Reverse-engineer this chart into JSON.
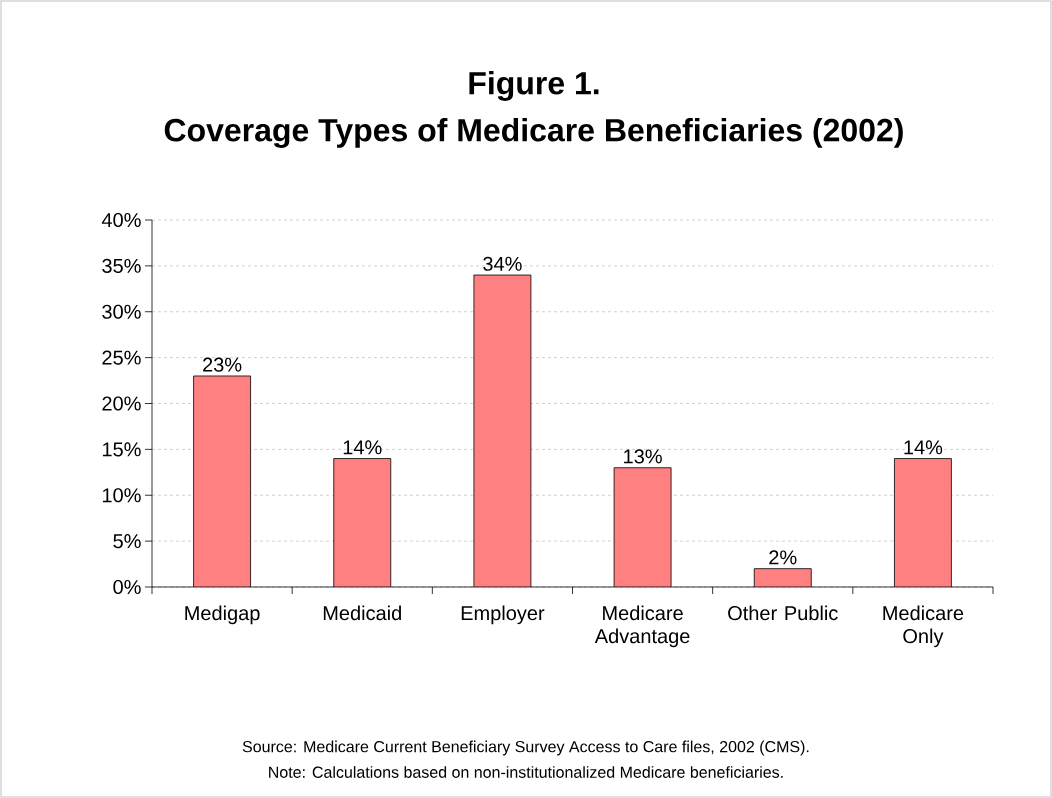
{
  "chart_data": {
    "type": "bar",
    "title": "Figure 1.",
    "subtitle": "Coverage Types of Medicare Beneficiaries (2002)",
    "categories": [
      "Medigap",
      "Medicaid",
      "Employer",
      "Medicare Advantage",
      "Other Public",
      "Medicare Only"
    ],
    "values": [
      23,
      14,
      34,
      13,
      2,
      14
    ],
    "value_labels": [
      "23%",
      "14%",
      "34%",
      "13%",
      "2%",
      "14%"
    ],
    "color": "#ff8080",
    "ylim": [
      0,
      40
    ],
    "yticks": [
      {
        "value": 0,
        "label": "0%"
      },
      {
        "value": 5,
        "label": "5%"
      },
      {
        "value": 10,
        "label": "10%"
      },
      {
        "value": 15,
        "label": "15%"
      },
      {
        "value": 20,
        "label": "20%"
      },
      {
        "value": 25,
        "label": "25%"
      },
      {
        "value": 30,
        "label": "30%"
      },
      {
        "value": 35,
        "label": "35%"
      },
      {
        "value": 40,
        "label": "40%"
      }
    ],
    "grid": "y",
    "annotations": [
      "Source: Medicare Current Beneficiary Survey Access to Care files, 2002 (CMS).",
      "Note: Calculations based on non-institutionalized Medicare beneficiaries."
    ]
  }
}
